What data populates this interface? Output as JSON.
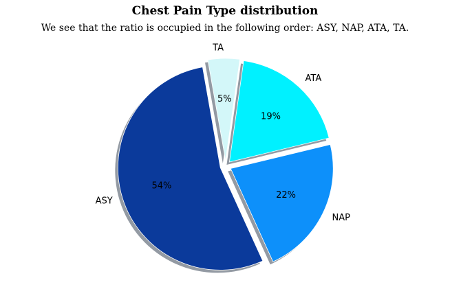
{
  "header": {
    "title": "Chest Pain Type distribution",
    "subtitle": "We see that the ratio is occupied in the following order: ASY, NAP, ATA, TA."
  },
  "chart_data": {
    "type": "pie",
    "title": "Chest Pain Type distribution",
    "subtitle": "We see that the ratio is occupied in the following order: ASY, NAP, ATA, TA.",
    "labels": [
      "ASY",
      "NAP",
      "ATA",
      "TA"
    ],
    "values": [
      54,
      22,
      19,
      5
    ],
    "pct_labels": [
      "54%",
      "22%",
      "19%",
      "5%"
    ],
    "colors": [
      "#0b3a9b",
      "#0d90fa",
      "#00f1ff",
      "#d3f7f9"
    ],
    "start_angle": 100,
    "counterclock": true,
    "explode": [
      0.054,
      0.054,
      0.054,
      0.054
    ],
    "shadow": true,
    "shadow_color": "#939aa3",
    "label_color": "#000000",
    "label_distance": 1.1,
    "pct_distance": 0.6,
    "legend": "none",
    "background": "#ffffff"
  }
}
